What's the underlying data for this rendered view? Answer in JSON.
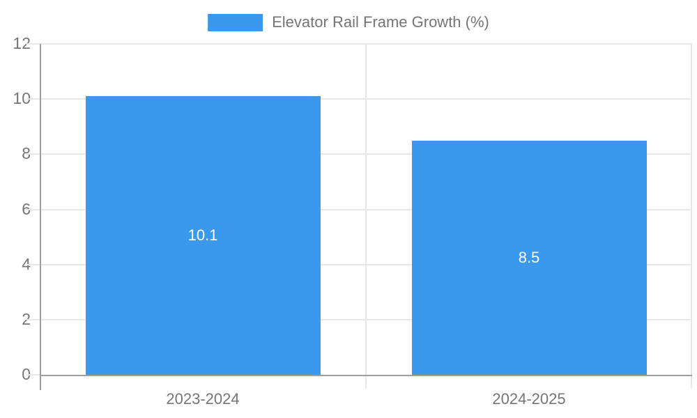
{
  "legend": {
    "label": "Elevator Rail Frame Growth (%)"
  },
  "colors": {
    "bar": "#3B99EC",
    "grid": "#e7e7e7",
    "axis": "#9e9e9e",
    "text": "#757575",
    "bar_label_text": "#ffffff",
    "background": "#ffffff"
  },
  "chart_data": {
    "type": "bar",
    "title": "Elevator Rail Frame Growth (%)",
    "categories": [
      "2023-2024",
      "2024-2025"
    ],
    "values": [
      10.1,
      8.5
    ],
    "series": [
      {
        "name": "Elevator Rail Frame Growth (%)",
        "values": [
          10.1,
          8.5
        ]
      }
    ],
    "xlabel": "",
    "ylabel": "",
    "ylim": [
      0,
      12
    ],
    "yticks": [
      0,
      2,
      4,
      6,
      8,
      10,
      12
    ],
    "grid": true,
    "legend_position": "top-center",
    "bar_color": "#3B99EC",
    "data_labels": [
      "10.1",
      "8.5"
    ],
    "data_label_position": "center-inside"
  }
}
